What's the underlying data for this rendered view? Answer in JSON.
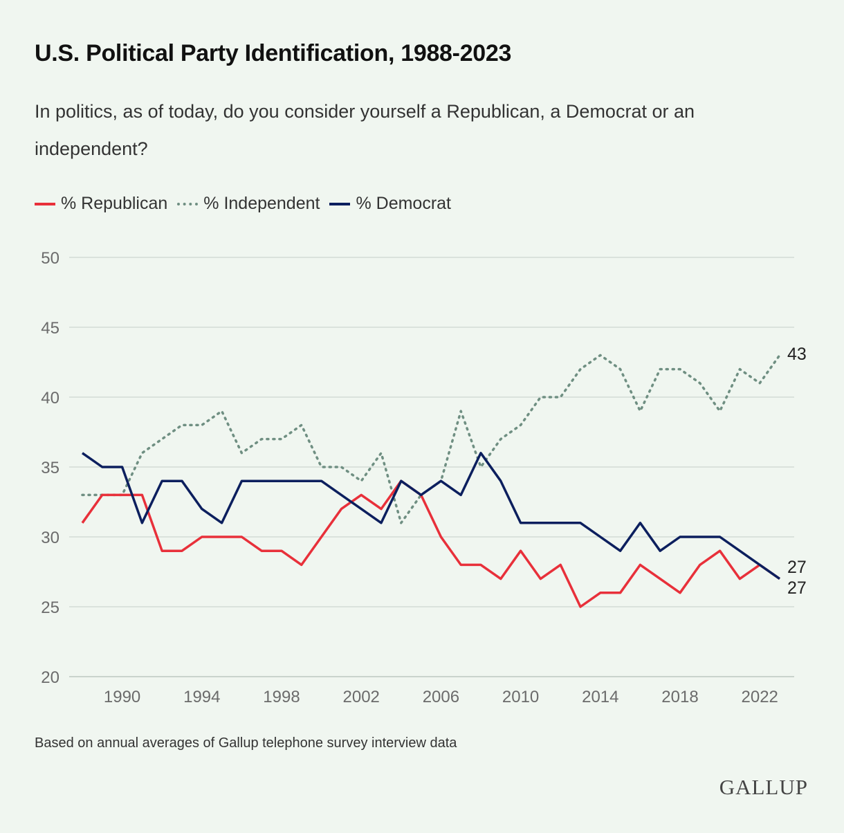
{
  "title": "U.S. Political Party Identification, 1988-2023",
  "subtitle": "In politics, as of today, do you consider yourself a Republican, a Democrat or an independent?",
  "legend": [
    {
      "label": "% Republican",
      "color": "#e8303a",
      "style": "solid"
    },
    {
      "label": "% Independent",
      "color": "#6f8f82",
      "style": "dotted"
    },
    {
      "label": "% Democrat",
      "color": "#0c1f5e",
      "style": "solid"
    }
  ],
  "footnote": "Based on annual averages of Gallup telephone survey interview data",
  "logo": "GALLUP",
  "chart_data": {
    "type": "line",
    "x": [
      1988,
      1989,
      1990,
      1991,
      1992,
      1993,
      1994,
      1995,
      1996,
      1997,
      1998,
      1999,
      2000,
      2001,
      2002,
      2003,
      2004,
      2005,
      2006,
      2007,
      2008,
      2009,
      2010,
      2011,
      2012,
      2013,
      2014,
      2015,
      2016,
      2017,
      2018,
      2019,
      2020,
      2021,
      2022,
      2023
    ],
    "xticks": [
      1990,
      1994,
      1998,
      2002,
      2006,
      2010,
      2014,
      2018,
      2022
    ],
    "ylim": [
      20,
      50
    ],
    "yticks": [
      20,
      25,
      30,
      35,
      40,
      45,
      50
    ],
    "grid": true,
    "series": [
      {
        "name": "% Republican",
        "color": "#e8303a",
        "dash": "solid",
        "values": [
          31,
          33,
          33,
          33,
          29,
          29,
          30,
          30,
          30,
          29,
          29,
          28,
          30,
          32,
          33,
          32,
          34,
          33,
          30,
          28,
          28,
          27,
          29,
          27,
          28,
          25,
          26,
          26,
          28,
          27,
          26,
          28,
          29,
          27,
          28,
          27
        ],
        "end_label": "27"
      },
      {
        "name": "% Independent",
        "color": "#6f8f82",
        "dash": "dotted",
        "values": [
          33,
          33,
          33,
          36,
          37,
          38,
          38,
          39,
          36,
          37,
          37,
          38,
          35,
          35,
          34,
          36,
          31,
          33,
          34,
          39,
          35,
          37,
          38,
          40,
          40,
          42,
          43,
          42,
          39,
          42,
          42,
          41,
          39,
          42,
          41,
          43
        ],
        "end_label": "43"
      },
      {
        "name": "% Democrat",
        "color": "#0c1f5e",
        "dash": "solid",
        "values": [
          36,
          35,
          35,
          31,
          34,
          34,
          32,
          31,
          34,
          34,
          34,
          34,
          34,
          33,
          32,
          31,
          34,
          33,
          34,
          33,
          36,
          34,
          31,
          31,
          31,
          31,
          30,
          29,
          31,
          29,
          30,
          30,
          30,
          29,
          28,
          27
        ],
        "end_label": "27"
      }
    ]
  }
}
